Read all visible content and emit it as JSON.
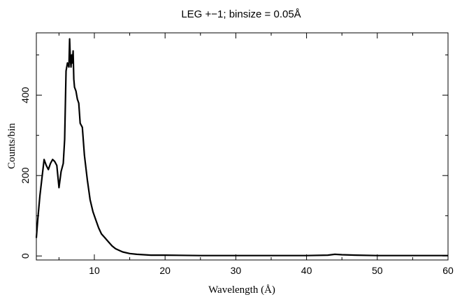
{
  "chart_data": {
    "type": "line",
    "title": "LEG +−1; binsize = 0.05Å",
    "xlabel": "Wavelength (Å)",
    "ylabel": "Counts/bin",
    "xlim": [
      1.8,
      60
    ],
    "ylim": [
      -10,
      555
    ],
    "x_ticks": [
      10,
      20,
      30,
      40,
      50,
      60
    ],
    "y_ticks": [
      0,
      200,
      400
    ],
    "grid": false,
    "series": [
      {
        "x": [
          1.8,
          2.0,
          2.3,
          2.6,
          2.9,
          3.2,
          3.5,
          3.8,
          4.1,
          4.4,
          4.7,
          5.0,
          5.3,
          5.6,
          5.8,
          6.0,
          6.2,
          6.4,
          6.5,
          6.6,
          6.7,
          6.8,
          6.9,
          7.0,
          7.1,
          7.2,
          7.4,
          7.6,
          7.8,
          8.0,
          8.3,
          8.6,
          9.0,
          9.4,
          9.8,
          10.2,
          10.6,
          11.0,
          11.5,
          12.0,
          12.5,
          13.0,
          13.5,
          14.0,
          15.0,
          16.0,
          17.0,
          18.0,
          20.0,
          25.0,
          30.0,
          35.0,
          40.0,
          43.0,
          44.0,
          45.0,
          47.0,
          50.0,
          55.0,
          60.0
        ],
        "y": [
          45,
          90,
          150,
          195,
          240,
          225,
          215,
          230,
          240,
          235,
          225,
          170,
          210,
          230,
          290,
          460,
          480,
          470,
          540,
          490,
          470,
          500,
          480,
          510,
          440,
          420,
          410,
          390,
          380,
          330,
          320,
          250,
          190,
          140,
          110,
          90,
          70,
          55,
          45,
          35,
          25,
          18,
          14,
          10,
          6,
          4,
          3,
          2,
          2,
          1,
          1,
          1,
          1,
          2,
          4,
          3,
          2,
          1,
          1,
          1
        ]
      }
    ]
  }
}
